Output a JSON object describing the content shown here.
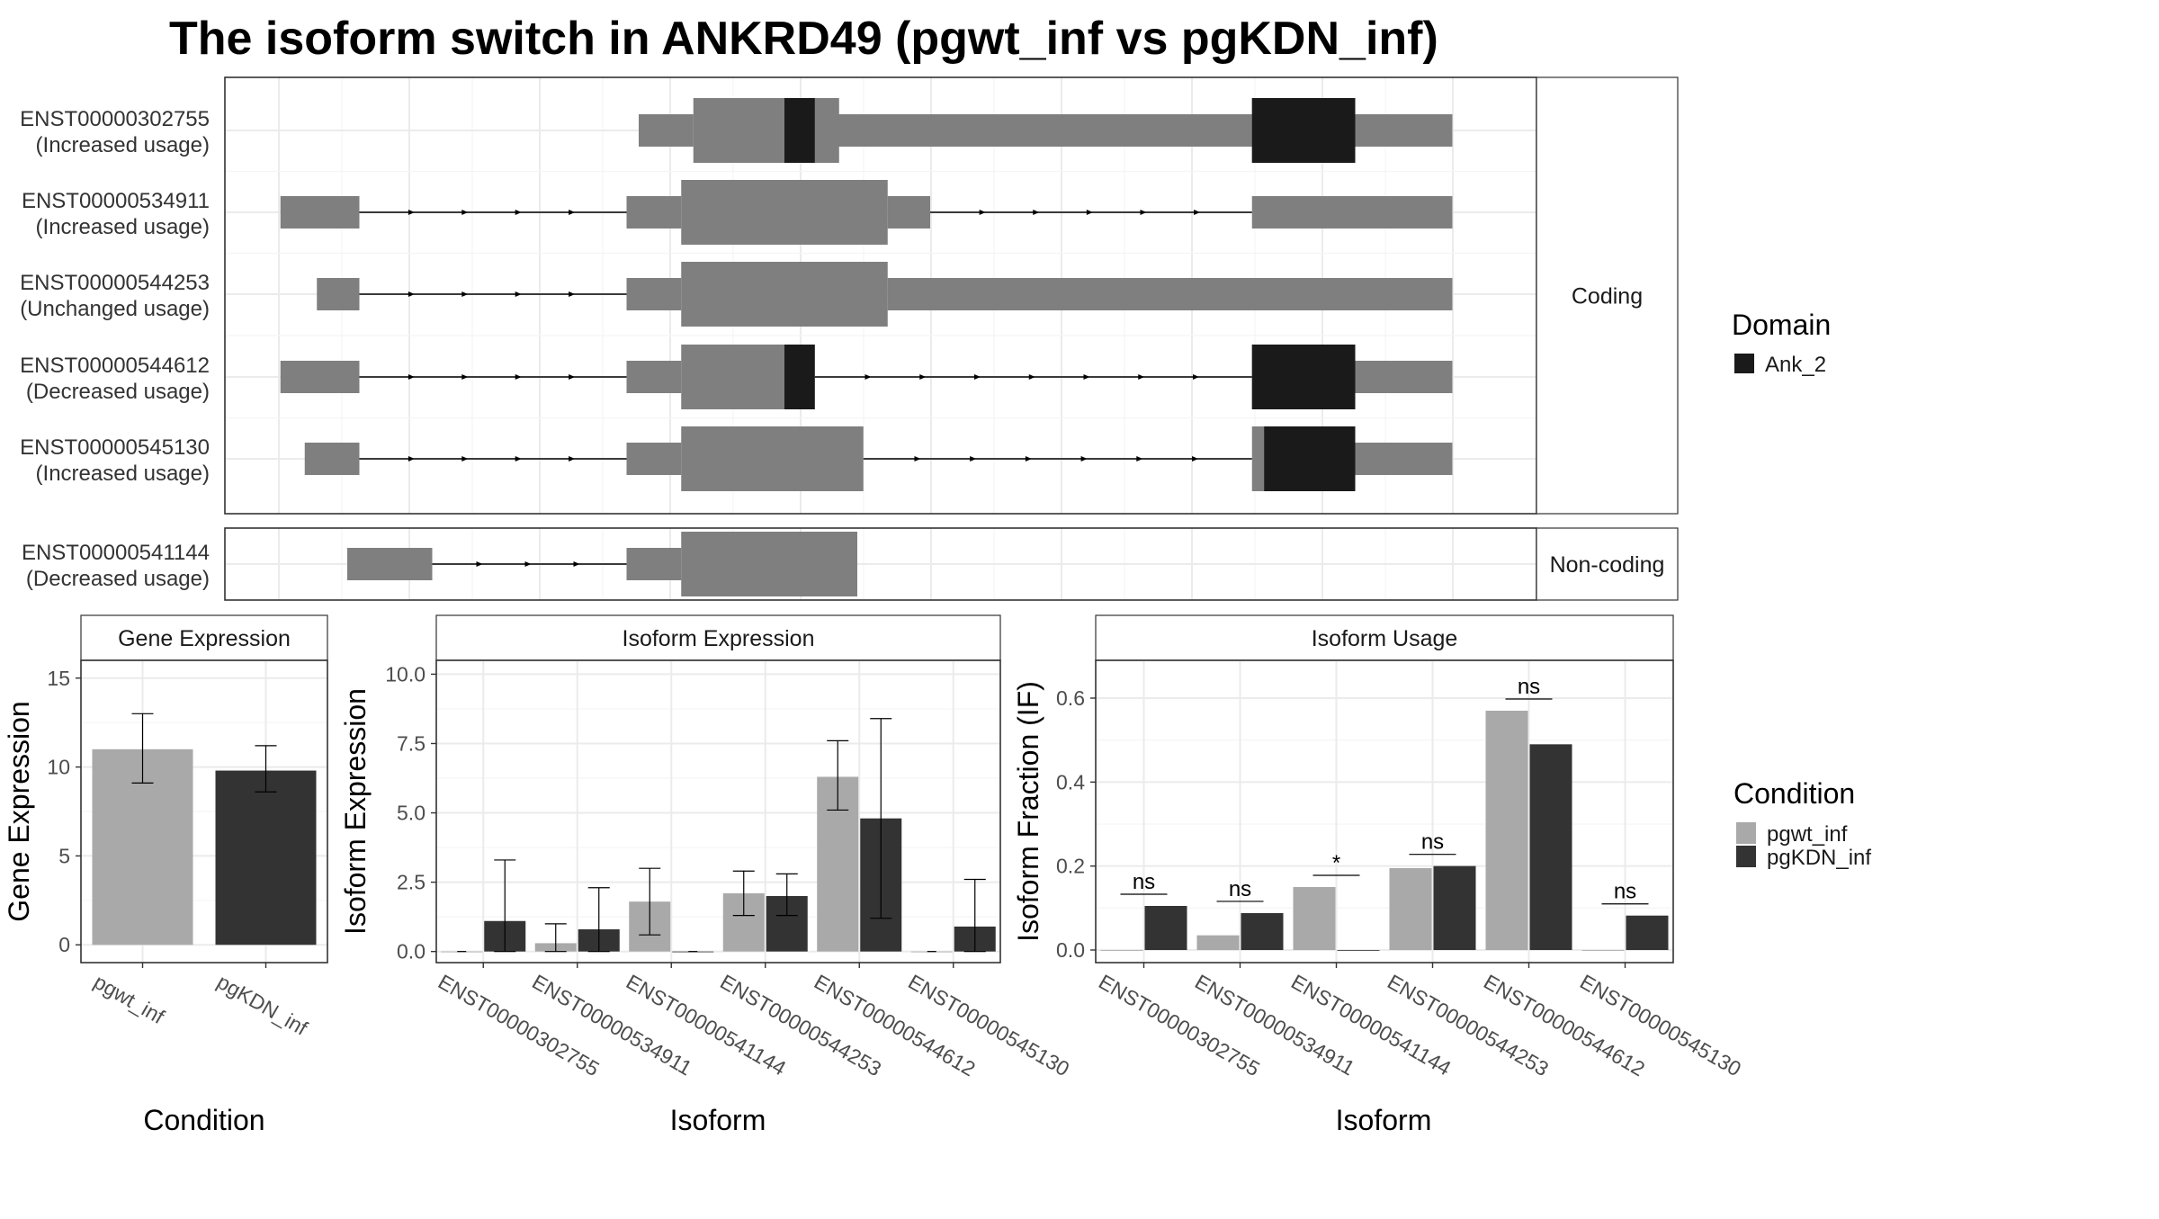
{
  "title": "The isoform switch in ANKRD49 (pgwt_inf vs pgKDN_inf)",
  "colors": {
    "exon": "#7f7f7f",
    "domain": "#1a1a1a",
    "cond1": "#a9a9a9",
    "cond2": "#333333"
  },
  "structure": {
    "groups": [
      {
        "label": "Coding",
        "transcripts": [
          {
            "id": "ENST00000302755",
            "usage": "(Increased usage)",
            "utr": [
              [
                300,
                345
              ],
              [
                440,
                530
              ],
              [
                530,
                970
              ]
            ],
            "cds": [
              [
                345,
                465
              ],
              [
                805,
                890
              ]
            ],
            "domains": [
              [
                420,
                445
              ],
              [
                805,
                890
              ]
            ],
            "introns": [
              [
                465,
                805
              ]
            ]
          },
          {
            "id": "ENST00000534911",
            "usage": "(Increased usage)",
            "utr": [
              [
                5,
                70
              ],
              [
                290,
                335
              ],
              [
                505,
                540
              ],
              [
                805,
                970
              ]
            ],
            "cds": [
              [
                335,
                505
              ]
            ],
            "domains": [],
            "introns": [
              [
                70,
                290
              ],
              [
                540,
                805
              ]
            ]
          },
          {
            "id": "ENST00000544253",
            "usage": "(Unchanged usage)",
            "utr": [
              [
                35,
                70
              ],
              [
                290,
                335
              ],
              [
                505,
                970
              ]
            ],
            "cds": [
              [
                335,
                505
              ]
            ],
            "domains": [],
            "introns": [
              [
                70,
                290
              ]
            ]
          },
          {
            "id": "ENST00000544612",
            "usage": "(Decreased usage)",
            "utr": [
              [
                5,
                70
              ],
              [
                290,
                335
              ],
              [
                890,
                970
              ]
            ],
            "cds": [
              [
                335,
                445
              ],
              [
                805,
                890
              ]
            ],
            "domains": [
              [
                420,
                445
              ],
              [
                805,
                890
              ]
            ],
            "introns": [
              [
                70,
                290
              ],
              [
                445,
                805
              ]
            ]
          },
          {
            "id": "ENST00000545130",
            "usage": "(Increased usage)",
            "utr": [
              [
                25,
                70
              ],
              [
                290,
                335
              ],
              [
                890,
                970
              ]
            ],
            "cds": [
              [
                335,
                485
              ],
              [
                805,
                890
              ]
            ],
            "domains": [
              [
                815,
                890
              ]
            ],
            "introns": [
              [
                70,
                290
              ],
              [
                485,
                805
              ]
            ]
          }
        ]
      },
      {
        "label": "Non-coding",
        "transcripts": [
          {
            "id": "ENST00000541144",
            "usage": "(Decreased usage)",
            "utr": [
              [
                60,
                130
              ],
              [
                290,
                335
              ]
            ],
            "cds": [
              [
                335,
                480
              ]
            ],
            "domains": [],
            "introns": [
              [
                130,
                290
              ]
            ]
          }
        ]
      }
    ]
  },
  "legend_domain": {
    "title": "Domain",
    "items": [
      "Ank_2"
    ]
  },
  "legend_condition": {
    "title": "Condition",
    "items": [
      "pgwt_inf",
      "pgKDN_inf"
    ]
  },
  "chart_data": [
    {
      "type": "bar",
      "title": "Gene Expression",
      "xlabel": "Condition",
      "ylabel": "Gene Expression",
      "categories": [
        "pgwt_inf",
        "pgKDN_inf"
      ],
      "values": [
        11.0,
        9.8
      ],
      "errors": [
        [
          9.1,
          13.0
        ],
        [
          8.6,
          11.2
        ]
      ],
      "ylim": [
        -1,
        16
      ],
      "yticks": [
        0,
        5,
        10,
        15
      ]
    },
    {
      "type": "bar",
      "title": "Isoform Expression",
      "xlabel": "Isoform",
      "ylabel": "Isoform Expression",
      "categories": [
        "ENST00000302755",
        "ENST00000534911",
        "ENST00000541144",
        "ENST00000544253",
        "ENST00000544612",
        "ENST00000545130"
      ],
      "series": [
        {
          "name": "pgwt_inf",
          "values": [
            0.0,
            0.3,
            1.8,
            2.1,
            6.3,
            0.0
          ],
          "errors": [
            [
              0.0,
              0.0
            ],
            [
              0.0,
              1.0
            ],
            [
              0.6,
              3.0
            ],
            [
              1.3,
              2.9
            ],
            [
              5.1,
              7.6
            ],
            [
              0.0,
              0.0
            ]
          ]
        },
        {
          "name": "pgKDN_inf",
          "values": [
            1.1,
            0.8,
            0.0,
            2.0,
            4.8,
            0.9
          ],
          "errors": [
            [
              0.0,
              3.3
            ],
            [
              0.0,
              2.3
            ],
            [
              0.0,
              0.0
            ],
            [
              1.3,
              2.8
            ],
            [
              1.2,
              8.4
            ],
            [
              0.0,
              2.6
            ]
          ]
        }
      ],
      "ylim": [
        -0.4,
        10.5
      ],
      "yticks": [
        "0.0",
        "2.5",
        "5.0",
        "7.5",
        "10.0"
      ]
    },
    {
      "type": "bar",
      "title": "Isoform Usage",
      "xlabel": "Isoform",
      "ylabel": "Isoform Fraction (IF)",
      "categories": [
        "ENST00000302755",
        "ENST00000534911",
        "ENST00000541144",
        "ENST00000544253",
        "ENST00000544612",
        "ENST00000545130"
      ],
      "series": [
        {
          "name": "pgwt_inf",
          "values": [
            0.0,
            0.035,
            0.15,
            0.195,
            0.57,
            0.0
          ]
        },
        {
          "name": "pgKDN_inf",
          "values": [
            0.105,
            0.088,
            0.0,
            0.2,
            0.49,
            0.082
          ]
        }
      ],
      "significance": [
        "ns",
        "ns",
        "*",
        "ns",
        "ns",
        "ns"
      ],
      "ylim": [
        -0.03,
        0.69
      ],
      "yticks": [
        "0.0",
        "0.2",
        "0.4",
        "0.6"
      ]
    }
  ]
}
